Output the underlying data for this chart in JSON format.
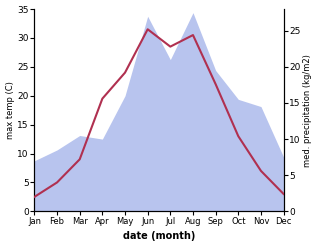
{
  "months": [
    "Jan",
    "Feb",
    "Mar",
    "Apr",
    "May",
    "Jun",
    "Jul",
    "Aug",
    "Sep",
    "Oct",
    "Nov",
    "Dec"
  ],
  "temperature": [
    2.5,
    5.0,
    9.0,
    19.5,
    24.0,
    31.5,
    28.5,
    30.5,
    22.0,
    13.0,
    7.0,
    3.0
  ],
  "precipitation": [
    7.0,
    8.5,
    10.5,
    10.0,
    16.0,
    27.0,
    21.0,
    27.5,
    19.5,
    15.5,
    14.5,
    7.5
  ],
  "temp_color": "#b03050",
  "precip_color": "#b8c4ee",
  "temp_ylim": [
    0,
    35
  ],
  "precip_ylim": [
    0,
    28
  ],
  "temp_yticks": [
    0,
    5,
    10,
    15,
    20,
    25,
    30,
    35
  ],
  "precip_yticks": [
    0,
    5,
    10,
    15,
    20,
    25
  ],
  "xlabel": "date (month)",
  "ylabel_left": "max temp (C)",
  "ylabel_right": "med. precipitation (kg/m2)",
  "bg_color": "#ffffff"
}
